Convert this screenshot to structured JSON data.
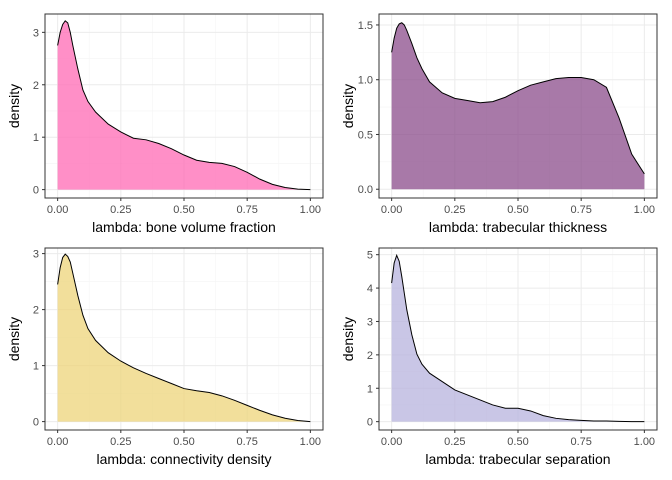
{
  "chart_data": [
    {
      "type": "area",
      "xlabel": "lambda: bone volume fraction",
      "ylabel": "density",
      "xlim": [
        -0.05,
        1.05
      ],
      "ylim": [
        -0.16,
        3.35
      ],
      "xticks": [
        "0.00",
        "0.25",
        "0.50",
        "0.75",
        "1.00"
      ],
      "yticks": [
        "0",
        "1",
        "2",
        "3"
      ],
      "fill_color": "#FF69B4",
      "x": [
        0.0,
        0.01,
        0.02,
        0.03,
        0.04,
        0.05,
        0.06,
        0.08,
        0.1,
        0.12,
        0.15,
        0.2,
        0.25,
        0.3,
        0.35,
        0.4,
        0.45,
        0.5,
        0.55,
        0.6,
        0.65,
        0.7,
        0.75,
        0.8,
        0.85,
        0.9,
        0.95,
        1.0
      ],
      "y": [
        2.75,
        3.0,
        3.15,
        3.22,
        3.18,
        3.0,
        2.75,
        2.3,
        1.9,
        1.68,
        1.48,
        1.25,
        1.1,
        0.98,
        0.95,
        0.88,
        0.78,
        0.66,
        0.56,
        0.52,
        0.5,
        0.44,
        0.33,
        0.2,
        0.1,
        0.04,
        0.01,
        0.0
      ]
    },
    {
      "type": "area",
      "xlabel": "lambda: trabecular thickness",
      "ylabel": "density",
      "xlim": [
        -0.05,
        1.05
      ],
      "ylim": [
        -0.08,
        1.6
      ],
      "xticks": [
        "0.00",
        "0.25",
        "0.50",
        "0.75",
        "1.00"
      ],
      "yticks": [
        "0.0",
        "0.5",
        "1.0",
        "1.5"
      ],
      "fill_color": "#8B4C8B",
      "x": [
        0.0,
        0.01,
        0.02,
        0.03,
        0.04,
        0.05,
        0.06,
        0.08,
        0.1,
        0.12,
        0.15,
        0.2,
        0.25,
        0.3,
        0.35,
        0.4,
        0.45,
        0.5,
        0.55,
        0.6,
        0.65,
        0.7,
        0.75,
        0.8,
        0.85,
        0.9,
        0.95,
        1.0
      ],
      "y": [
        1.25,
        1.38,
        1.47,
        1.51,
        1.52,
        1.5,
        1.45,
        1.33,
        1.2,
        1.1,
        0.98,
        0.88,
        0.83,
        0.81,
        0.79,
        0.8,
        0.84,
        0.9,
        0.95,
        0.98,
        1.01,
        1.02,
        1.02,
        1.0,
        0.93,
        0.65,
        0.32,
        0.14
      ]
    },
    {
      "type": "area",
      "xlabel": "lambda: connectivity density",
      "ylabel": "density",
      "xlim": [
        -0.05,
        1.05
      ],
      "ylim": [
        -0.15,
        3.1
      ],
      "xticks": [
        "0.00",
        "0.25",
        "0.50",
        "0.75",
        "1.00"
      ],
      "yticks": [
        "0",
        "1",
        "2",
        "3"
      ],
      "fill_color": "#EED47A",
      "x": [
        0.0,
        0.01,
        0.02,
        0.03,
        0.04,
        0.05,
        0.06,
        0.08,
        0.1,
        0.12,
        0.15,
        0.2,
        0.25,
        0.3,
        0.35,
        0.4,
        0.45,
        0.5,
        0.55,
        0.6,
        0.65,
        0.7,
        0.75,
        0.8,
        0.85,
        0.9,
        0.95,
        1.0
      ],
      "y": [
        2.45,
        2.75,
        2.93,
        2.99,
        2.95,
        2.85,
        2.65,
        2.25,
        1.9,
        1.66,
        1.45,
        1.23,
        1.08,
        0.96,
        0.86,
        0.77,
        0.68,
        0.59,
        0.55,
        0.52,
        0.46,
        0.38,
        0.29,
        0.2,
        0.12,
        0.06,
        0.02,
        0.0
      ]
    },
    {
      "type": "area",
      "xlabel": "lambda: trabecular separation",
      "ylabel": "density",
      "xlim": [
        -0.05,
        1.05
      ],
      "ylim": [
        -0.25,
        5.2
      ],
      "xticks": [
        "0.00",
        "0.25",
        "0.50",
        "0.75",
        "1.00"
      ],
      "yticks": [
        "0",
        "1",
        "2",
        "3",
        "4",
        "5"
      ],
      "fill_color": "#B7B3DE",
      "x": [
        0.0,
        0.01,
        0.02,
        0.03,
        0.04,
        0.05,
        0.06,
        0.08,
        0.1,
        0.12,
        0.15,
        0.2,
        0.25,
        0.3,
        0.35,
        0.4,
        0.45,
        0.5,
        0.55,
        0.6,
        0.65,
        0.7,
        0.75,
        0.8,
        0.85,
        0.9,
        0.95,
        1.0
      ],
      "y": [
        4.15,
        4.75,
        4.98,
        4.8,
        4.35,
        3.85,
        3.35,
        2.6,
        2.02,
        1.72,
        1.45,
        1.2,
        0.95,
        0.8,
        0.65,
        0.5,
        0.4,
        0.4,
        0.32,
        0.18,
        0.1,
        0.06,
        0.04,
        0.02,
        0.02,
        0.01,
        0.0,
        0.0
      ]
    }
  ]
}
